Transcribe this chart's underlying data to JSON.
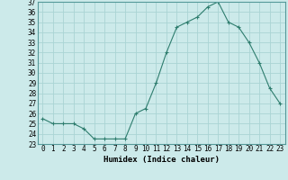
{
  "x": [
    0,
    1,
    2,
    3,
    4,
    5,
    6,
    7,
    8,
    9,
    10,
    11,
    12,
    13,
    14,
    15,
    16,
    17,
    18,
    19,
    20,
    21,
    22,
    23
  ],
  "y": [
    25.5,
    25.0,
    25.0,
    25.0,
    24.5,
    23.5,
    23.5,
    23.5,
    23.5,
    26.0,
    26.5,
    29.0,
    32.0,
    34.5,
    35.0,
    35.5,
    36.5,
    37.0,
    35.0,
    34.5,
    33.0,
    31.0,
    28.5,
    27.0
  ],
  "xlabel": "Humidex (Indice chaleur)",
  "line_color": "#2e7d6e",
  "marker": "+",
  "bg_color": "#cceaea",
  "grid_color": "#aad4d4",
  "ylim": [
    23,
    37
  ],
  "xlim_min": -0.5,
  "xlim_max": 23.5,
  "yticks": [
    23,
    24,
    25,
    26,
    27,
    28,
    29,
    30,
    31,
    32,
    33,
    34,
    35,
    36,
    37
  ],
  "xticks": [
    0,
    1,
    2,
    3,
    4,
    5,
    6,
    7,
    8,
    9,
    10,
    11,
    12,
    13,
    14,
    15,
    16,
    17,
    18,
    19,
    20,
    21,
    22,
    23
  ],
  "tick_fontsize": 5.5,
  "xlabel_fontsize": 6.5,
  "linewidth": 0.8,
  "markersize": 3.5,
  "markeredgewidth": 0.8
}
